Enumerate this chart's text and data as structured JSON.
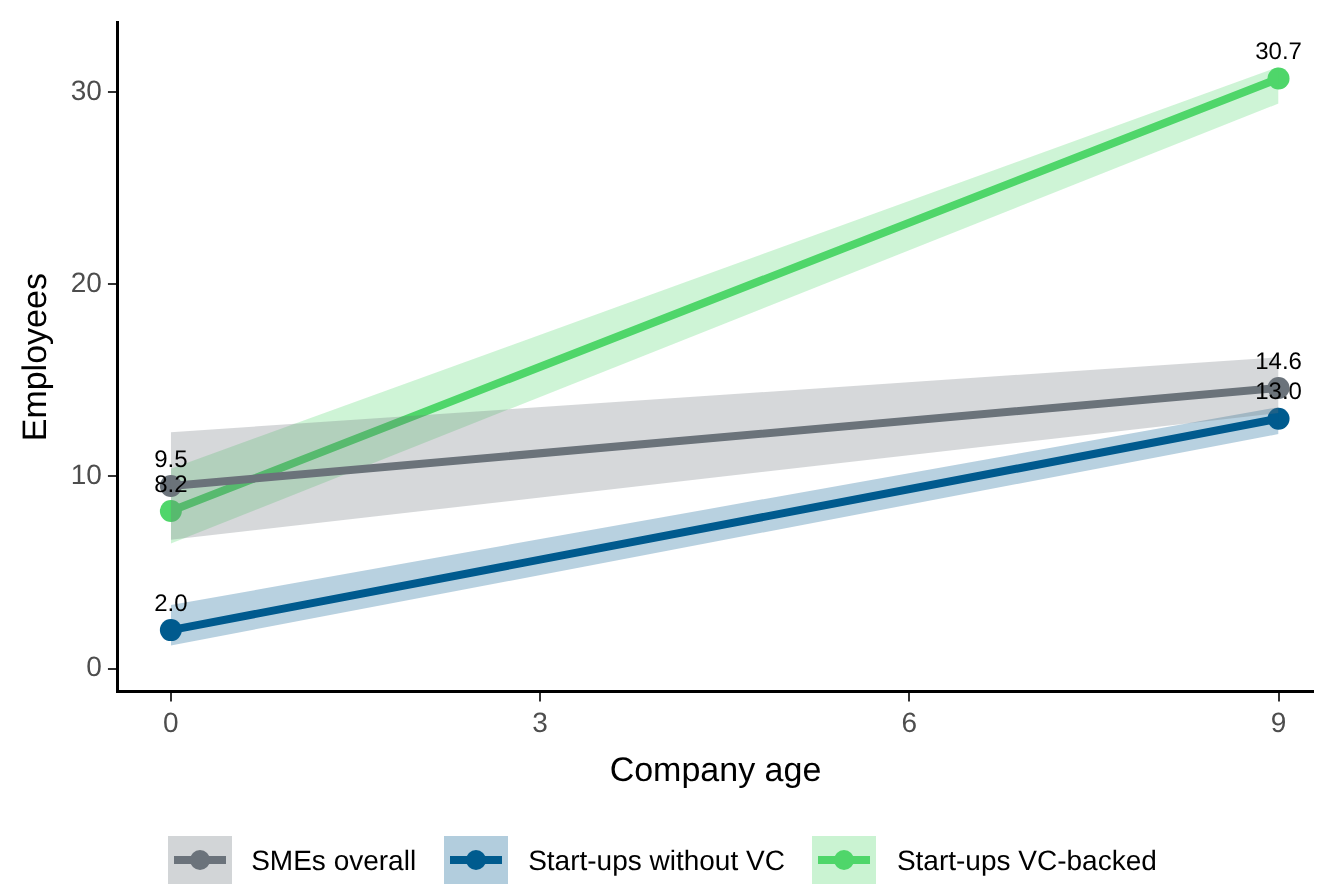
{
  "chart_data": {
    "type": "line",
    "xlabel": "Company age",
    "ylabel": "Employees",
    "x": [
      0,
      9
    ],
    "xlim": [
      -0.43,
      9.28
    ],
    "xticks": [
      0,
      3,
      6,
      9
    ],
    "ylim": [
      -1.2,
      33.6
    ],
    "yticks": [
      0,
      10,
      20,
      30
    ],
    "grid": false,
    "legend": "bottom",
    "marker": "circle",
    "line_style": "solid",
    "series": [
      {
        "name": "SMEs overall",
        "color": "#6b737b",
        "values": [
          9.5,
          14.6
        ],
        "value_labels": [
          "9.5",
          "14.6"
        ],
        "lower": [
          6.7,
          13.3
        ],
        "upper": [
          12.3,
          16.2
        ]
      },
      {
        "name": "Start-ups without VC",
        "color": "#005b8e",
        "values": [
          2.0,
          13.0
        ],
        "value_labels": [
          "2.0",
          "13.0"
        ],
        "lower": [
          1.2,
          12.2
        ],
        "upper": [
          3.3,
          13.6
        ]
      },
      {
        "name": "Start-ups VC-backed",
        "color": "#4fd66a",
        "values": [
          8.2,
          30.7
        ],
        "value_labels": [
          "8.2",
          "30.7"
        ],
        "lower": [
          6.5,
          29.4
        ],
        "upper": [
          10.4,
          31.3
        ]
      }
    ]
  }
}
